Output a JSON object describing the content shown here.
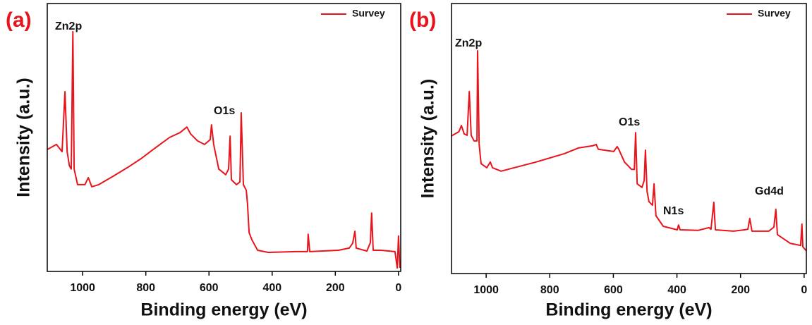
{
  "chart_data": [
    {
      "type": "line",
      "panel_label": "(a)",
      "xlabel": "Binding energy (eV)",
      "ylabel": "Intensity (a.u.)",
      "xlim": [
        1112,
        -7
      ],
      "ylim": [
        0,
        100
      ],
      "xticks": [
        1000,
        800,
        600,
        400,
        200,
        0
      ],
      "legend": "upper right",
      "annotations": [
        "Zn2p",
        "O1s"
      ],
      "x": [
        1112,
        1083,
        1065,
        1056,
        1049,
        1042,
        1036,
        1031,
        1027,
        1016,
        993,
        982,
        971,
        949,
        904,
        859,
        815,
        770,
        725,
        692,
        670,
        658,
        636,
        614,
        596,
        592,
        585,
        569,
        547,
        538,
        533,
        529,
        513,
        502,
        498,
        491,
        482,
        478,
        473,
        464,
        446,
        413,
        324,
        288,
        286,
        281,
        190,
        156,
        145,
        138,
        134,
        100,
        89,
        85,
        80,
        56,
        11,
        4,
        0,
        -4
      ],
      "series": [
        {
          "name": "Survey",
          "color": "#e8141b",
          "values": [
            45.5,
            47.4,
            44.7,
            67.1,
            44.7,
            39.5,
            38.2,
            89.5,
            38.2,
            32.4,
            32.4,
            35,
            31.6,
            32.4,
            35.5,
            38.7,
            42.1,
            46.1,
            50,
            51.8,
            53.9,
            51.3,
            48.7,
            47.4,
            49.2,
            54.7,
            47.4,
            38.2,
            36.1,
            38.2,
            50.5,
            34.2,
            32.4,
            33.4,
            59.2,
            32.4,
            30.3,
            25,
            14.5,
            11.8,
            7.9,
            7.1,
            7.4,
            7.4,
            13.9,
            7.4,
            7.9,
            8.7,
            10.5,
            15,
            8.7,
            7.6,
            10.8,
            21.8,
            7.9,
            7.9,
            7.4,
            1.3,
            13.2,
            1.3
          ]
        }
      ]
    },
    {
      "type": "line",
      "panel_label": "(b)",
      "xlabel": "Binding energy (eV)",
      "ylabel": "Intensity (a.u.)",
      "xlim": [
        1109,
        -7
      ],
      "ylim": [
        0,
        100
      ],
      "xticks": [
        1000,
        800,
        600,
        400,
        200,
        0
      ],
      "legend": "upper right",
      "annotations": [
        "Zn2p",
        "O1s",
        "N1s",
        "Gd4d"
      ],
      "x": [
        1109,
        1086,
        1078,
        1069,
        1060,
        1053,
        1047,
        1038,
        1029,
        1027,
        1022,
        1016,
        998,
        987,
        980,
        953,
        931,
        843,
        754,
        710,
        665,
        654,
        647,
        599,
        588,
        583,
        565,
        543,
        534,
        530,
        525,
        510,
        503,
        499,
        494,
        488,
        477,
        472,
        466,
        443,
        399,
        395,
        390,
        333,
        299,
        293,
        284,
        279,
        222,
        188,
        177,
        171,
        164,
        111,
        95,
        89,
        84,
        44,
        11,
        7,
        4,
        -7
      ],
      "series": [
        {
          "name": "Survey",
          "color": "#e8141b",
          "values": [
            51,
            52.5,
            54.8,
            51.7,
            51.2,
            67.4,
            51.2,
            49.1,
            49.1,
            82.5,
            47.8,
            40.7,
            39.2,
            41.3,
            39.2,
            37.9,
            38.6,
            41.3,
            44.4,
            46.5,
            47.3,
            47.8,
            46,
            45.2,
            47,
            46,
            41.3,
            38.6,
            38.6,
            52.2,
            33.2,
            31.9,
            34.5,
            45.7,
            30.5,
            26.6,
            25.3,
            33.2,
            21.4,
            17.5,
            16.2,
            18,
            16.2,
            16,
            17,
            16.4,
            26.4,
            16.2,
            15.7,
            16.2,
            16.4,
            20.4,
            15.7,
            15.7,
            17.2,
            23.8,
            14.4,
            11.2,
            10.4,
            18.3,
            9.9,
            8.4
          ]
        }
      ]
    }
  ]
}
